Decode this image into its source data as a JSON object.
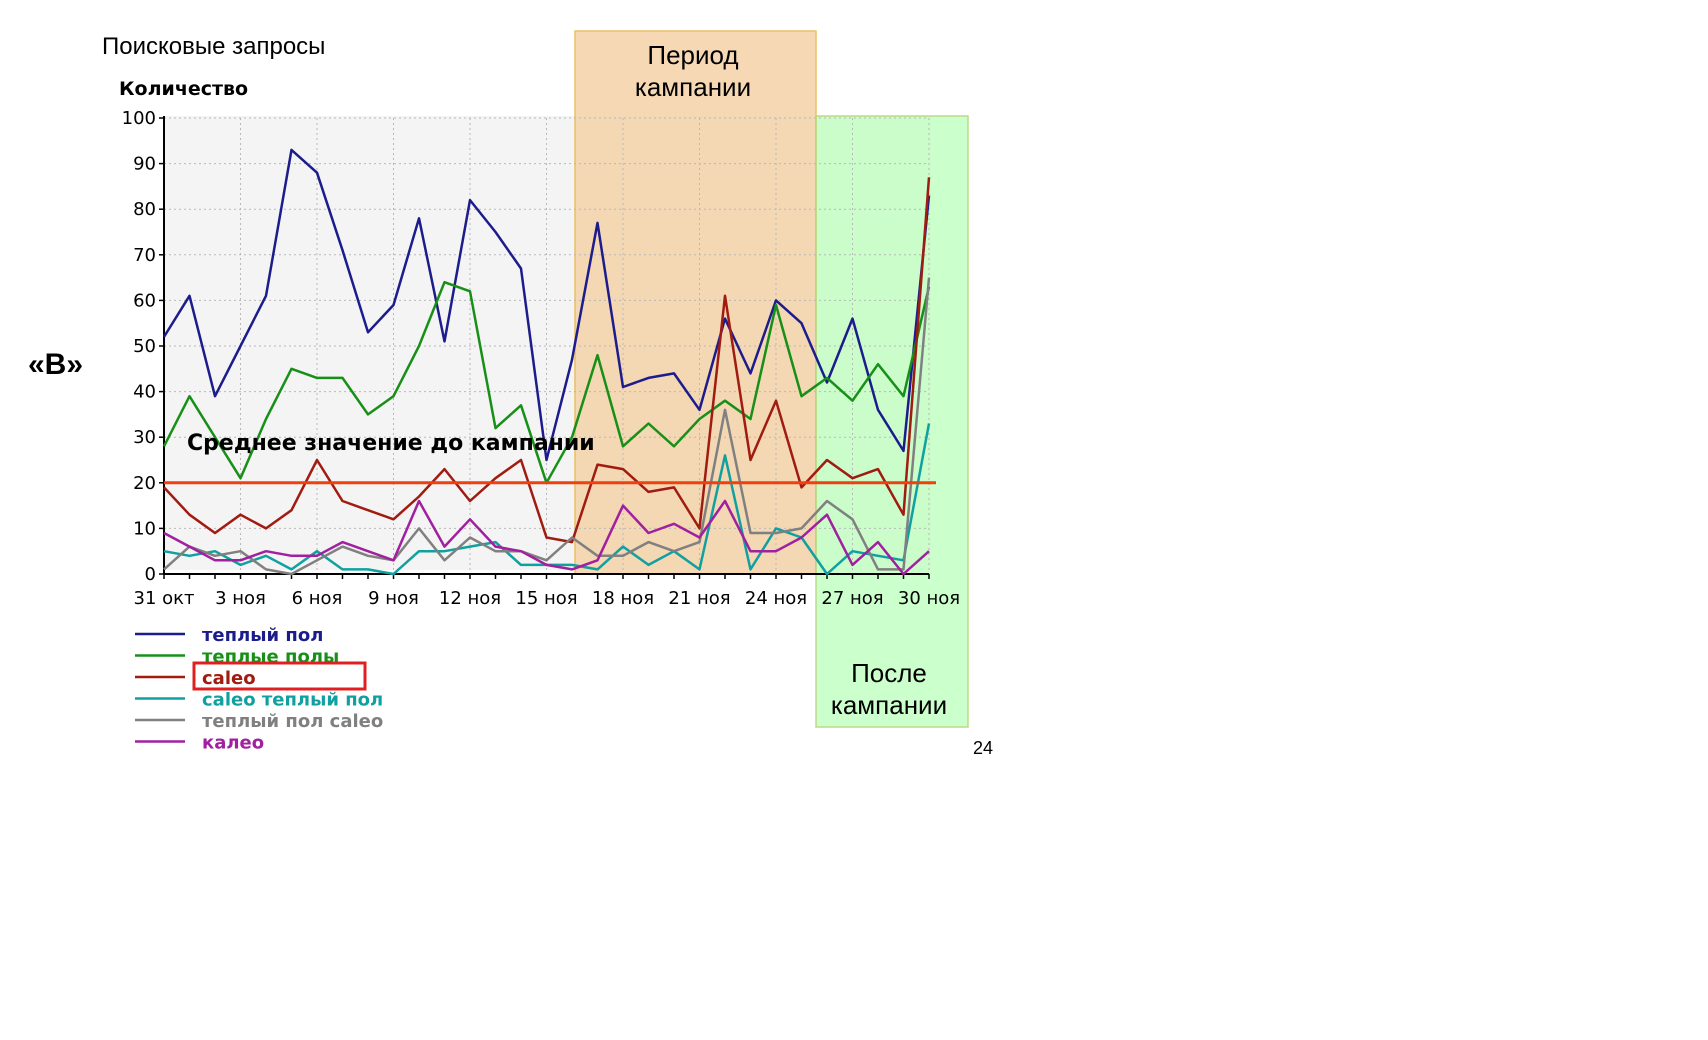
{
  "page": {
    "title": "Поисковые запросы",
    "side_label": "«В»",
    "page_number": "24"
  },
  "regions": {
    "campaign_label": [
      "Период",
      "кампании"
    ],
    "after_label": [
      "После",
      "кампании"
    ],
    "campaign_fill": "#f5d2a8",
    "campaign_border": "#e8b84a",
    "after_fill": "#c6ffc6",
    "after_border": "#b5d77a"
  },
  "chart_data": {
    "type": "line",
    "ylabel": "Количество",
    "ylim": [
      0,
      100
    ],
    "yticks": [
      0,
      10,
      20,
      30,
      40,
      50,
      60,
      70,
      80,
      90,
      100
    ],
    "grid": true,
    "legend_position": "bottom-left",
    "x_tick_labels": [
      "31 окт",
      "3 ноя",
      "6 ноя",
      "9 ноя",
      "12 ноя",
      "15 ноя",
      "18 ноя",
      "21 ноя",
      "24 ноя",
      "27 ноя",
      "30 ноя"
    ],
    "x_tick_days": [
      0,
      3,
      6,
      9,
      12,
      15,
      18,
      21,
      24,
      27,
      30
    ],
    "campaign_period_days": [
      16.5,
      26.5
    ],
    "after_period_days": [
      26.5,
      31.5
    ],
    "reference_line": {
      "label": "Среднее значение до кампании",
      "value": 20,
      "color": "#f04010"
    },
    "series": [
      {
        "name": "теплый пол",
        "color": "#1c1c8c",
        "values": [
          52,
          61,
          39,
          50,
          61,
          93,
          88,
          71,
          53,
          59,
          78,
          51,
          82,
          75,
          67,
          25,
          47,
          77,
          41,
          43,
          44,
          36,
          56,
          44,
          60,
          55,
          42,
          56,
          36,
          27,
          83
        ]
      },
      {
        "name": "теплые полы",
        "color": "#189018",
        "values": [
          28,
          39,
          30,
          21,
          34,
          45,
          43,
          43,
          35,
          39,
          50,
          64,
          62,
          32,
          37,
          20,
          30,
          48,
          28,
          33,
          28,
          34,
          38,
          34,
          59,
          39,
          43,
          38,
          46,
          39,
          63
        ]
      },
      {
        "name": "caleo",
        "color": "#a01c10",
        "values": [
          19,
          13,
          9,
          13,
          10,
          14,
          25,
          16,
          14,
          12,
          17,
          23,
          16,
          21,
          25,
          8,
          7,
          24,
          23,
          18,
          19,
          10,
          61,
          25,
          38,
          19,
          25,
          21,
          23,
          13,
          87
        ]
      },
      {
        "name": "caleo теплый пол",
        "color": "#10a0a0",
        "values": [
          5,
          4,
          5,
          2,
          4,
          1,
          5,
          1,
          1,
          0,
          5,
          5,
          6,
          7,
          2,
          2,
          2,
          1,
          6,
          2,
          5,
          1,
          26,
          1,
          10,
          8,
          0,
          5,
          4,
          3,
          33
        ]
      },
      {
        "name": "теплый пол caleo",
        "color": "#808080",
        "values": [
          1,
          6,
          4,
          5,
          1,
          0,
          3,
          6,
          4,
          3,
          10,
          3,
          8,
          5,
          5,
          3,
          8,
          4,
          4,
          7,
          5,
          7,
          36,
          9,
          9,
          10,
          16,
          12,
          1,
          1,
          65
        ]
      },
      {
        "name": "калео",
        "color": "#a020a0",
        "values": [
          9,
          6,
          3,
          3,
          5,
          4,
          4,
          7,
          5,
          3,
          16,
          6,
          12,
          6,
          5,
          2,
          1,
          3,
          15,
          9,
          11,
          8,
          16,
          5,
          5,
          8,
          13,
          2,
          7,
          0,
          5
        ]
      }
    ],
    "highlighted_legend_item": "caleo",
    "highlight_color": "#e02020"
  }
}
